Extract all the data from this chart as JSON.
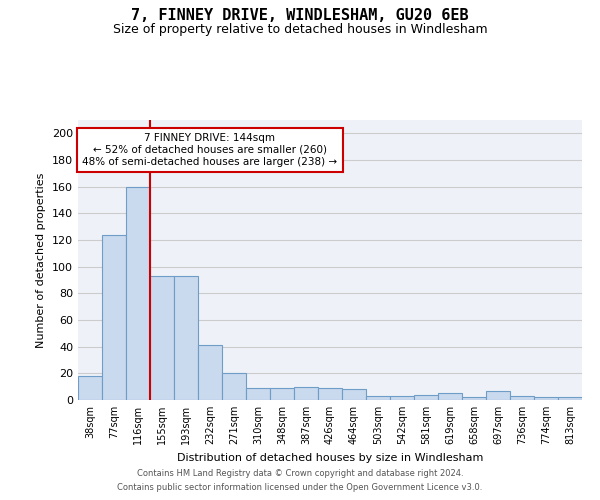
{
  "title_line1": "7, FINNEY DRIVE, WINDLESHAM, GU20 6EB",
  "title_line2": "Size of property relative to detached houses in Windlesham",
  "xlabel": "Distribution of detached houses by size in Windlesham",
  "ylabel": "Number of detached properties",
  "bar_values": [
    18,
    124,
    160,
    93,
    93,
    41,
    20,
    9,
    9,
    10,
    9,
    8,
    3,
    3,
    4,
    5,
    2,
    7,
    3,
    2,
    2
  ],
  "categories": [
    "38sqm",
    "77sqm",
    "116sqm",
    "155sqm",
    "193sqm",
    "232sqm",
    "271sqm",
    "310sqm",
    "348sqm",
    "387sqm",
    "426sqm",
    "464sqm",
    "503sqm",
    "542sqm",
    "581sqm",
    "619sqm",
    "658sqm",
    "697sqm",
    "736sqm",
    "774sqm",
    "813sqm"
  ],
  "bar_color": "#c9d9ee",
  "bar_edge_color": "#6e9dc8",
  "grid_color": "#cccccc",
  "bg_color": "#eef2f8",
  "annotation_text": "7 FINNEY DRIVE: 144sqm\n← 52% of detached houses are smaller (260)\n48% of semi-detached houses are larger (238) →",
  "annotation_box_color": "#ffffff",
  "annotation_box_edge": "#cc0000",
  "vline_color": "#cc0000",
  "vline_x": 2.5,
  "ylim": [
    0,
    210
  ],
  "yticks": [
    0,
    20,
    40,
    60,
    80,
    100,
    120,
    140,
    160,
    180,
    200
  ],
  "footer_line1": "Contains HM Land Registry data © Crown copyright and database right 2024.",
  "footer_line2": "Contains public sector information licensed under the Open Government Licence v3.0."
}
